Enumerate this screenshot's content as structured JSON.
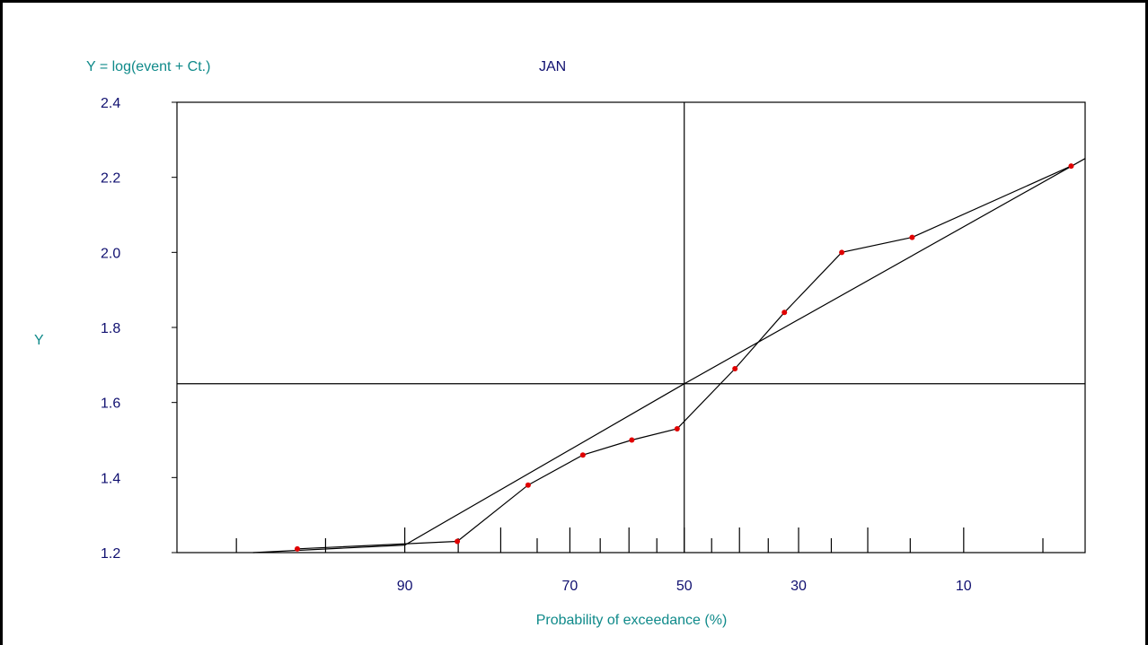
{
  "chart_data": {
    "type": "line",
    "title": "JAN",
    "formula": "Y = log(event + Ct.)",
    "xlabel": "Probability of exceedance (%)",
    "ylabel": "Y",
    "x_scale": "normal-probability (reversed)",
    "xlim": [
      99,
      3.3
    ],
    "ylim": [
      1.2,
      2.4
    ],
    "y_ticks": [
      "1.2",
      "1.4",
      "1.6",
      "1.8",
      "2.0",
      "2.2",
      "2.4"
    ],
    "x_tick_labels": [
      "90",
      "70",
      "50",
      "30",
      "10"
    ],
    "x_minor_ticks": [
      98,
      95,
      90,
      85,
      80,
      75,
      70,
      65,
      60,
      55,
      50,
      45,
      40,
      35,
      30,
      25,
      20,
      15,
      10,
      5
    ],
    "grid": false,
    "crosshair": {
      "x": 50,
      "y": 1.65
    },
    "series": [
      {
        "kind": "observed",
        "color": "#e00000",
        "x": [
          96.2,
          85.1,
          76.3,
          67.9,
          59.5,
          51.3,
          40.8,
          32.3,
          23.5,
          14.8,
          3.8
        ],
        "y": [
          1.21,
          1.23,
          1.38,
          1.46,
          1.5,
          1.53,
          1.69,
          1.84,
          2.0,
          2.04,
          2.23
        ]
      },
      {
        "kind": "fitted",
        "color": "#000000",
        "x": [
          97.6,
          90,
          50,
          3.3
        ],
        "y": [
          1.2,
          1.22,
          1.65,
          2.25
        ]
      }
    ]
  }
}
